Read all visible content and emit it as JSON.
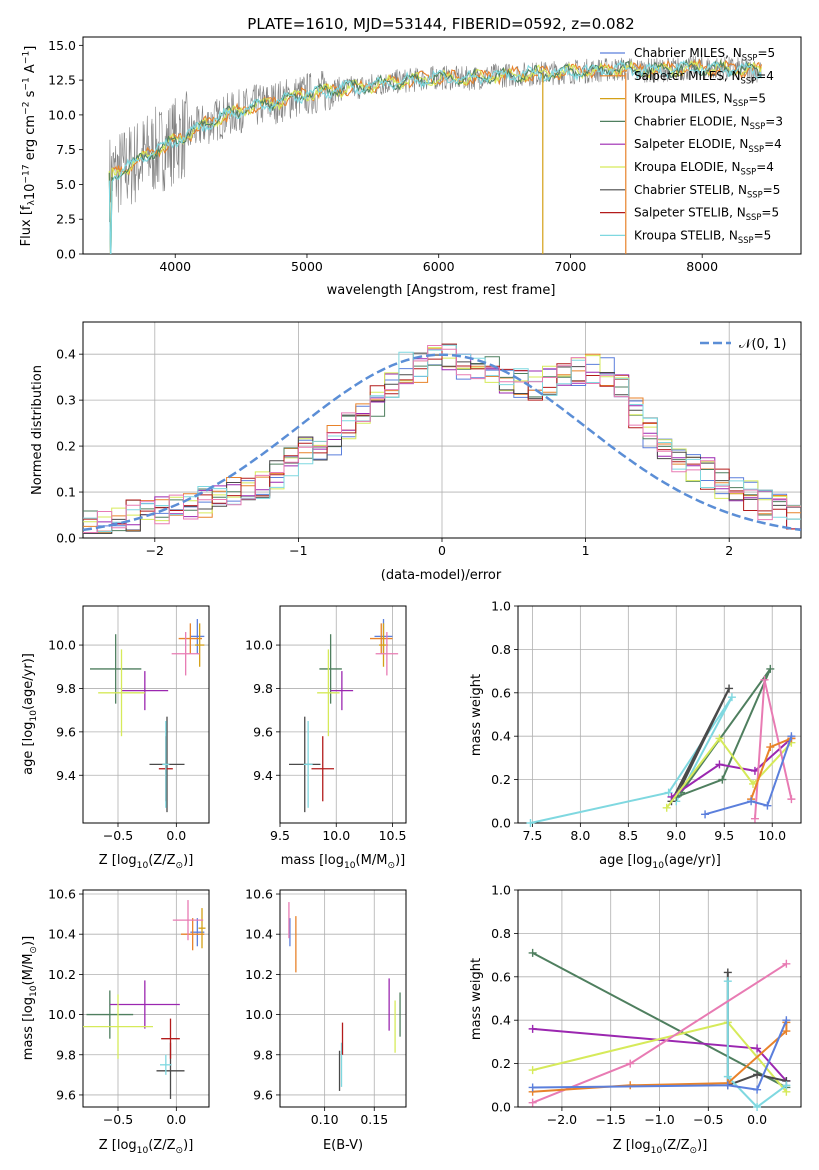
{
  "colors": {
    "chabrier_miles": "#5b7fdc",
    "salpeter_miles": "#e8822a",
    "kroupa_miles": "#d4a017",
    "chabrier_elodie": "#4f7f5f",
    "salpeter_elodie": "#9b27b0",
    "kroupa_elodie": "#d6ea5a",
    "chabrier_stelib": "#4a4a4a",
    "salpeter_stelib": "#b31b1b",
    "kroupa_stelib": "#7fd8e0",
    "pink": "#e87bb3",
    "gauss": "#5b8ed6",
    "grey_data": "#808080"
  },
  "chart_data": [
    {
      "type": "line",
      "title": "PLATE=1610, MJD=53144, FIBERID=0592, z=0.082",
      "xlabel": "wavelength [Angstrom, rest frame]",
      "ylabel": "Flux [f",
      "ylabel_parts": [
        "Flux [f",
        "λ",
        "10",
        "−17",
        " erg cm",
        "−2",
        " s",
        "−1",
        " A",
        "−1",
        "]"
      ],
      "xlim": [
        3300,
        8750
      ],
      "ylim": [
        0,
        15.6
      ],
      "xticks": [
        4000,
        5000,
        6000,
        7000,
        8000
      ],
      "yticks": [
        0.0,
        2.5,
        5.0,
        7.5,
        10.0,
        12.5,
        15.0
      ],
      "legend": [
        {
          "text": "Chabrier MILES, N",
          "sub": "SSP",
          "tail": "=5",
          "color": "chabrier_miles"
        },
        {
          "text": "Salpeter MILES, N",
          "sub": "SSP",
          "tail": "=4",
          "color": "salpeter_miles"
        },
        {
          "text": "Kroupa MILES, N",
          "sub": "SSP",
          "tail": "=5",
          "color": "kroupa_miles"
        },
        {
          "text": "Chabrier ELODIE, N",
          "sub": "SSP",
          "tail": "=3",
          "color": "chabrier_elodie"
        },
        {
          "text": "Salpeter ELODIE, N",
          "sub": "SSP",
          "tail": "=4",
          "color": "salpeter_elodie"
        },
        {
          "text": "Kroupa ELODIE, N",
          "sub": "SSP",
          "tail": "=4",
          "color": "kroupa_elodie"
        },
        {
          "text": "Chabrier STELIB, N",
          "sub": "SSP",
          "tail": "=5",
          "color": "chabrier_stelib"
        },
        {
          "text": "Salpeter STELIB, N",
          "sub": "SSP",
          "tail": "=5",
          "color": "salpeter_stelib"
        },
        {
          "text": "Kroupa STELIB, N",
          "sub": "SSP",
          "tail": "=5",
          "color": "kroupa_stelib"
        }
      ],
      "spectrum_envelope": {
        "wavelength": [
          3500,
          3600,
          3700,
          3800,
          3900,
          4000,
          4100,
          4200,
          4400,
          4600,
          4800,
          5000,
          5200,
          5400,
          5600,
          5800,
          6000,
          6200,
          6400,
          6600,
          6800,
          7000,
          7200,
          7400,
          7600,
          7800,
          8000,
          8200,
          8400
        ],
        "flux": [
          5.5,
          6.0,
          6.6,
          7.2,
          7.6,
          8.2,
          8.6,
          9.2,
          10.0,
          10.6,
          11.0,
          11.5,
          11.8,
          12.0,
          12.3,
          12.5,
          12.7,
          12.6,
          12.8,
          12.9,
          13.0,
          13.1,
          13.2,
          13.3,
          13.2,
          13.3,
          13.4,
          13.3,
          13.2
        ]
      }
    },
    {
      "type": "bar",
      "xlabel": "(data-model)/error",
      "ylabel": "Normed distribution",
      "xlim": [
        -2.5,
        2.5
      ],
      "ylim": [
        0,
        0.47
      ],
      "xticks": [
        -2,
        -1,
        0,
        1,
        2
      ],
      "yticks": [
        0.0,
        0.1,
        0.2,
        0.3,
        0.4
      ],
      "legend_label": "𝒩(0, 1)",
      "bin_edges_start": -2.5,
      "bin_width": 0.1,
      "histogram_mean": [
        0.03,
        0.03,
        0.04,
        0.05,
        0.05,
        0.06,
        0.06,
        0.07,
        0.08,
        0.09,
        0.1,
        0.11,
        0.12,
        0.14,
        0.17,
        0.19,
        0.18,
        0.21,
        0.24,
        0.27,
        0.3,
        0.34,
        0.37,
        0.37,
        0.39,
        0.4,
        0.38,
        0.37,
        0.36,
        0.35,
        0.34,
        0.33,
        0.34,
        0.35,
        0.36,
        0.37,
        0.36,
        0.32,
        0.27,
        0.23,
        0.2,
        0.17,
        0.15,
        0.14,
        0.12,
        0.11,
        0.09,
        0.07,
        0.06,
        0.05
      ]
    },
    {
      "type": "scatter",
      "xlabel": "Z [log",
      "xlabel_parts": [
        "Z [log",
        "10",
        "(Z/Z",
        "⊙",
        ")]"
      ],
      "ylabel_parts": [
        "age  [log",
        "10",
        "(age/yr)]"
      ],
      "xlim": [
        -0.8,
        0.28
      ],
      "ylim": [
        9.18,
        10.18
      ],
      "xticks": [
        -0.5,
        0.0
      ],
      "yticks": [
        9.4,
        9.6,
        9.8,
        10.0
      ],
      "points": [
        {
          "x": -0.52,
          "y": 9.89,
          "xerr": 0.22,
          "yerr": 0.16,
          "color": "chabrier_elodie"
        },
        {
          "x": -0.27,
          "y": 9.79,
          "xerr": 0.2,
          "yerr": 0.09,
          "color": "salpeter_elodie"
        },
        {
          "x": -0.47,
          "y": 9.78,
          "xerr": 0.2,
          "yerr": 0.2,
          "color": "kroupa_elodie"
        },
        {
          "x": -0.08,
          "y": 9.45,
          "xerr": 0.15,
          "yerr": 0.22,
          "color": "chabrier_stelib"
        },
        {
          "x": -0.09,
          "y": 9.43,
          "xerr": 0.06,
          "yerr": 0.15,
          "color": "salpeter_stelib"
        },
        {
          "x": -0.09,
          "y": 9.45,
          "xerr": 0.03,
          "yerr": 0.2,
          "color": "kroupa_stelib"
        },
        {
          "x": 0.18,
          "y": 10.04,
          "xerr": 0.06,
          "yerr": 0.08,
          "color": "chabrier_miles"
        },
        {
          "x": 0.12,
          "y": 10.03,
          "xerr": 0.1,
          "yerr": 0.07,
          "color": "salpeter_miles"
        },
        {
          "x": 0.2,
          "y": 10.0,
          "xerr": 0.04,
          "yerr": 0.1,
          "color": "kroupa_miles"
        },
        {
          "x": 0.08,
          "y": 9.96,
          "xerr": 0.12,
          "yerr": 0.1,
          "color": "pink"
        }
      ]
    },
    {
      "type": "scatter",
      "xlabel_parts": [
        "mass [log",
        "10",
        "(M/M",
        "⊙",
        ")]"
      ],
      "xlim": [
        9.5,
        10.62
      ],
      "ylim": [
        9.18,
        10.18
      ],
      "xticks": [
        9.5,
        10.0,
        10.5
      ],
      "yticks": [
        9.4,
        9.6,
        9.8,
        10.0
      ],
      "points": [
        {
          "x": 9.95,
          "y": 9.89,
          "xerr": 0.1,
          "yerr": 0.16,
          "color": "chabrier_elodie"
        },
        {
          "x": 10.05,
          "y": 9.79,
          "xerr": 0.1,
          "yerr": 0.09,
          "color": "salpeter_elodie"
        },
        {
          "x": 9.93,
          "y": 9.78,
          "xerr": 0.1,
          "yerr": 0.2,
          "color": "kroupa_elodie"
        },
        {
          "x": 9.72,
          "y": 9.45,
          "xerr": 0.14,
          "yerr": 0.22,
          "color": "chabrier_stelib"
        },
        {
          "x": 9.88,
          "y": 9.43,
          "xerr": 0.1,
          "yerr": 0.15,
          "color": "salpeter_stelib"
        },
        {
          "x": 9.75,
          "y": 9.45,
          "xerr": 0.04,
          "yerr": 0.2,
          "color": "kroupa_stelib"
        },
        {
          "x": 10.42,
          "y": 10.04,
          "xerr": 0.08,
          "yerr": 0.08,
          "color": "chabrier_miles"
        },
        {
          "x": 10.4,
          "y": 10.03,
          "xerr": 0.1,
          "yerr": 0.07,
          "color": "salpeter_miles"
        },
        {
          "x": 10.42,
          "y": 10.0,
          "xerr": 0.04,
          "yerr": 0.1,
          "color": "kroupa_miles"
        },
        {
          "x": 10.45,
          "y": 9.96,
          "xerr": 0.1,
          "yerr": 0.1,
          "color": "pink"
        }
      ]
    },
    {
      "type": "line",
      "xlabel_parts": [
        "age  [log",
        "10",
        "(age/yr)]"
      ],
      "ylabel": "mass weight",
      "xlim": [
        7.35,
        10.3
      ],
      "ylim": [
        0,
        1.0
      ],
      "xticks": [
        7.5,
        8.0,
        8.5,
        9.0,
        9.5,
        10.0
      ],
      "yticks": [
        0.0,
        0.2,
        0.4,
        0.6,
        0.8,
        1.0
      ],
      "series": [
        {
          "color": "kroupa_stelib",
          "x": [
            7.48,
            8.92,
            9.58,
            9.0
          ],
          "y": [
            0.0,
            0.14,
            0.58,
            0.1
          ]
        },
        {
          "color": "chabrier_stelib",
          "x": [
            8.95,
            9.55,
            9.0
          ],
          "y": [
            0.1,
            0.62,
            0.12
          ]
        },
        {
          "color": "chabrier_elodie",
          "x": [
            9.0,
            9.48,
            9.98,
            9.05
          ],
          "y": [
            0.12,
            0.2,
            0.71,
            0.14
          ]
        },
        {
          "color": "salpeter_elodie",
          "x": [
            8.95,
            9.45,
            9.82,
            10.2
          ],
          "y": [
            0.12,
            0.27,
            0.24,
            0.39
          ]
        },
        {
          "color": "kroupa_elodie",
          "x": [
            8.9,
            9.45,
            9.8,
            10.2
          ],
          "y": [
            0.07,
            0.39,
            0.18,
            0.37
          ]
        },
        {
          "color": "pink",
          "x": [
            9.82,
            9.92,
            10.2
          ],
          "y": [
            0.02,
            0.66,
            0.11
          ]
        },
        {
          "color": "salpeter_miles",
          "x": [
            9.78,
            9.98,
            10.2
          ],
          "y": [
            0.11,
            0.35,
            0.39
          ]
        },
        {
          "color": "chabrier_miles",
          "x": [
            9.3,
            9.78,
            9.95,
            10.2
          ],
          "y": [
            0.04,
            0.1,
            0.08,
            0.4
          ]
        }
      ]
    },
    {
      "type": "scatter",
      "xlabel_parts": [
        "Z [log",
        "10",
        "(Z/Z",
        "⊙",
        ")]"
      ],
      "ylabel_parts": [
        "mass [log",
        "10",
        "(M/M",
        "⊙",
        ")]"
      ],
      "xlim": [
        -0.8,
        0.28
      ],
      "ylim": [
        9.54,
        10.62
      ],
      "xticks": [
        -0.5,
        0.0
      ],
      "yticks": [
        9.6,
        9.8,
        10.0,
        10.2,
        10.4,
        10.6
      ],
      "points": [
        {
          "x": -0.57,
          "y": 10.0,
          "xerr": 0.2,
          "yerr": 0.12,
          "color": "chabrier_elodie"
        },
        {
          "x": -0.27,
          "y": 10.05,
          "xerr": 0.3,
          "yerr": 0.12,
          "color": "salpeter_elodie"
        },
        {
          "x": -0.5,
          "y": 9.94,
          "xerr": 0.3,
          "yerr": 0.16,
          "color": "kroupa_elodie"
        },
        {
          "x": -0.05,
          "y": 9.72,
          "xerr": 0.12,
          "yerr": 0.14,
          "color": "chabrier_stelib"
        },
        {
          "x": -0.05,
          "y": 9.88,
          "xerr": 0.08,
          "yerr": 0.1,
          "color": "salpeter_stelib"
        },
        {
          "x": -0.09,
          "y": 9.75,
          "xerr": 0.05,
          "yerr": 0.05,
          "color": "kroupa_stelib"
        },
        {
          "x": 0.18,
          "y": 10.41,
          "xerr": 0.06,
          "yerr": 0.07,
          "color": "chabrier_miles"
        },
        {
          "x": 0.14,
          "y": 10.4,
          "xerr": 0.1,
          "yerr": 0.08,
          "color": "salpeter_miles"
        },
        {
          "x": 0.22,
          "y": 10.43,
          "xerr": 0.03,
          "yerr": 0.1,
          "color": "kroupa_miles"
        },
        {
          "x": 0.1,
          "y": 10.47,
          "xerr": 0.13,
          "yerr": 0.1,
          "color": "pink"
        }
      ]
    },
    {
      "type": "scatter",
      "xlabel": "E(B-V)",
      "xlim": [
        0.055,
        0.182
      ],
      "ylim": [
        9.54,
        10.62
      ],
      "xticks": [
        0.1,
        0.15
      ],
      "yticks": [
        9.6,
        9.8,
        10.0,
        10.2,
        10.4,
        10.6
      ],
      "points": [
        {
          "x": 0.115,
          "y": 9.72,
          "yerr": 0.1,
          "color": "chabrier_stelib"
        },
        {
          "x": 0.117,
          "y": 9.75,
          "yerr": 0.11,
          "color": "kroupa_stelib"
        },
        {
          "x": 0.118,
          "y": 9.88,
          "yerr": 0.08,
          "color": "salpeter_stelib"
        },
        {
          "x": 0.165,
          "y": 10.05,
          "yerr": 0.13,
          "color": "salpeter_elodie"
        },
        {
          "x": 0.171,
          "y": 9.94,
          "yerr": 0.13,
          "color": "kroupa_elodie"
        },
        {
          "x": 0.176,
          "y": 10.0,
          "yerr": 0.11,
          "color": "chabrier_elodie"
        },
        {
          "x": 0.065,
          "y": 10.41,
          "yerr": 0.07,
          "color": "chabrier_miles"
        },
        {
          "x": 0.064,
          "y": 10.47,
          "yerr": 0.09,
          "color": "pink"
        },
        {
          "x": 0.071,
          "y": 10.35,
          "yerr": 0.14,
          "color": "salpeter_miles"
        }
      ]
    },
    {
      "type": "line",
      "xlabel_parts": [
        "Z [log",
        "10",
        "(Z/Z",
        "⊙",
        ")]"
      ],
      "ylabel": "mass weight",
      "xlim": [
        -2.45,
        0.45
      ],
      "ylim": [
        0,
        1.0
      ],
      "xticks": [
        -2.0,
        -1.5,
        -1.0,
        -0.5,
        0.0
      ],
      "yticks": [
        0.0,
        0.2,
        0.4,
        0.6,
        0.8,
        1.0
      ],
      "series": [
        {
          "color": "chabrier_elodie",
          "x": [
            -2.3,
            0.3
          ],
          "y": [
            0.71,
            0.09
          ]
        },
        {
          "color": "salpeter_elodie",
          "x": [
            -2.3,
            0.0,
            0.3
          ],
          "y": [
            0.36,
            0.27,
            0.12
          ]
        },
        {
          "color": "kroupa_elodie",
          "x": [
            -2.3,
            -0.3,
            0.3
          ],
          "y": [
            0.17,
            0.39,
            0.07
          ]
        },
        {
          "color": "chabrier_stelib",
          "x": [
            -0.3,
            -0.3,
            0.0,
            0.3
          ],
          "y": [
            0.62,
            0.1,
            0.15,
            0.12
          ]
        },
        {
          "color": "kroupa_stelib",
          "x": [
            -0.3,
            -0.3,
            0.0,
            0.3
          ],
          "y": [
            0.58,
            0.14,
            0.0,
            0.1
          ]
        },
        {
          "color": "pink",
          "x": [
            -2.3,
            -1.3,
            0.3
          ],
          "y": [
            0.02,
            0.2,
            0.66
          ]
        },
        {
          "color": "salpeter_miles",
          "x": [
            -2.3,
            -1.3,
            -0.3,
            0.3,
            0.3
          ],
          "y": [
            0.07,
            0.1,
            0.11,
            0.35,
            0.39
          ]
        },
        {
          "color": "chabrier_miles",
          "x": [
            -2.3,
            -0.3,
            0.0,
            0.3
          ],
          "y": [
            0.09,
            0.1,
            0.08,
            0.4
          ]
        }
      ]
    }
  ]
}
